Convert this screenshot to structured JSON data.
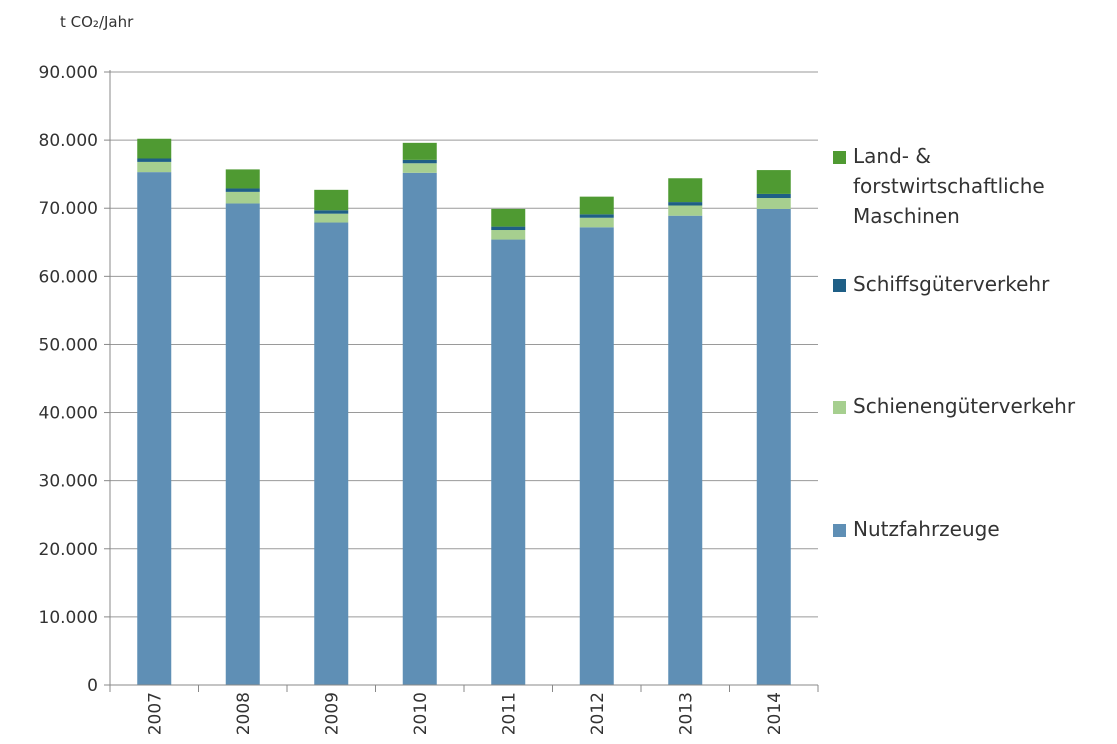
{
  "chart_data": {
    "type": "bar",
    "stacked": true,
    "unit_label": "t CO₂/Jahr",
    "categories": [
      "2007",
      "2008",
      "2009",
      "2010",
      "2011",
      "2012",
      "2013",
      "2014"
    ],
    "series": [
      {
        "name": "Nutzfahrzeuge",
        "color": "#5f8fb5",
        "values": [
          75300,
          70700,
          67900,
          75200,
          65400,
          67200,
          68900,
          69900
        ]
      },
      {
        "name": "Schienengüterverkehr",
        "color": "#a6cf8f",
        "values": [
          1500,
          1700,
          1300,
          1400,
          1400,
          1400,
          1500,
          1600
        ]
      },
      {
        "name": "Schiffsgüterverkehr",
        "color": "#1f5f86",
        "values": [
          500,
          500,
          500,
          500,
          500,
          500,
          500,
          600
        ]
      },
      {
        "name": "Land- & forstwirtschaftliche Maschinen",
        "color": "#4f9a32",
        "values": [
          2900,
          2800,
          3000,
          2500,
          2600,
          2600,
          3500,
          3500
        ]
      }
    ],
    "legend_order": [
      3,
      2,
      1,
      0
    ],
    "legend_lines": [
      [
        "Land- &",
        "forstwirtschaftliche",
        "Maschinen"
      ],
      [
        "Schiffsgüterverkehr"
      ],
      [
        "Schienengüterverkehr"
      ],
      [
        "Nutzfahrzeuge"
      ]
    ],
    "y_ticks": [
      0,
      10000,
      20000,
      30000,
      40000,
      50000,
      60000,
      70000,
      80000,
      90000
    ],
    "y_tick_labels": [
      "0",
      "10.000",
      "20.000",
      "30.000",
      "40.000",
      "50.000",
      "60.000",
      "70.000",
      "80.000",
      "90.000"
    ],
    "ylim": [
      0,
      90000
    ],
    "grid": true,
    "legend_position": "right",
    "axis_color": "#888888",
    "grid_color": "#9a9a9a"
  }
}
